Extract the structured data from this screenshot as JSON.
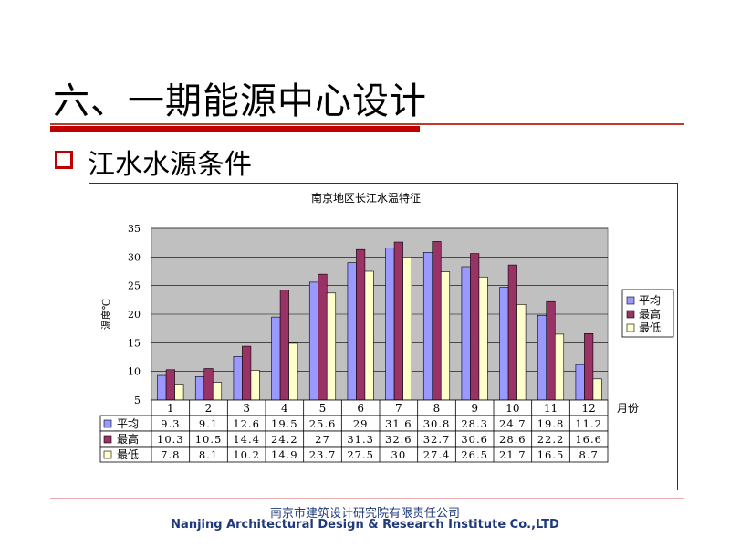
{
  "slide": {
    "title": "六、一期能源中心设计",
    "bullet": "江水水源条件"
  },
  "footer": {
    "cn": "南京市建筑设计研究院有限责任公司",
    "en": "Nanjing Architectural Design & Research Institute Co.,LTD"
  },
  "colors": {
    "accent_red": "#c00000",
    "series_avg": "#9999ff",
    "series_max": "#993366",
    "series_min": "#ffffcc",
    "plot_bg": "#c0c0c0"
  },
  "chart_data": {
    "type": "bar",
    "title": "南京地区长江水温特征",
    "ylabel": "温度℃",
    "xlabel": "月份",
    "ylim": [
      5,
      35
    ],
    "yticks": [
      5,
      10,
      15,
      20,
      25,
      30,
      35
    ],
    "grid": true,
    "legend_position": "right",
    "categories": [
      "1",
      "2",
      "3",
      "4",
      "5",
      "6",
      "7",
      "8",
      "9",
      "10",
      "11",
      "12"
    ],
    "series": [
      {
        "name": "平均",
        "values": [
          9.3,
          9.1,
          12.6,
          19.5,
          25.6,
          29,
          31.6,
          30.8,
          28.3,
          24.7,
          19.8,
          11.2
        ],
        "labels": [
          "9.3",
          "9.1",
          "12.6",
          "19.5",
          "25.6",
          "29",
          "31.6",
          "30.8",
          "28.3",
          "24.7",
          "19.8",
          "11.2"
        ]
      },
      {
        "name": "最高",
        "values": [
          10.3,
          10.5,
          14.4,
          24.2,
          27,
          31.3,
          32.6,
          32.7,
          30.6,
          28.6,
          22.2,
          16.6
        ],
        "labels": [
          "10.3",
          "10.5",
          "14.4",
          "24.2",
          "27",
          "31.3",
          "32.6",
          "32.7",
          "30.6",
          "28.6",
          "22.2",
          "16.6"
        ]
      },
      {
        "name": "最低",
        "values": [
          7.8,
          8.1,
          10.2,
          14.9,
          23.7,
          27.5,
          30,
          27.4,
          26.5,
          21.7,
          16.5,
          8.7
        ],
        "labels": [
          "7.8",
          "8.1",
          "10.2",
          "14.9",
          "23.7",
          "27.5",
          "30",
          "27.4",
          "26.5",
          "21.7",
          "16.5",
          "8.7"
        ]
      }
    ]
  }
}
